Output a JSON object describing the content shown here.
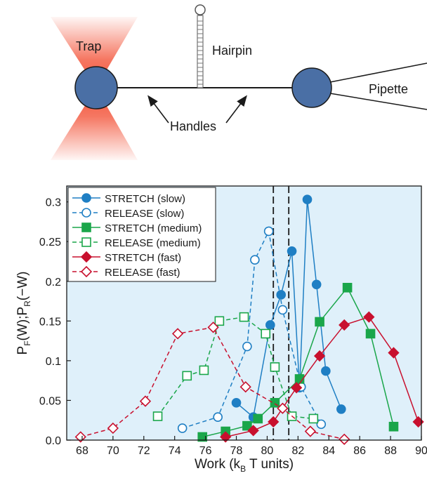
{
  "schematic": {
    "trap_label": "Trap",
    "hairpin_label": "Hairpin",
    "handles_label": "Handles",
    "pipette_label": "Pipette",
    "colors": {
      "bead": "#4a6fa5",
      "trap": "#f24a2e",
      "line": "#1a1a1a"
    }
  },
  "chart_data": {
    "type": "line",
    "xlabel": "Work (k",
    "xlabel_sub": "B",
    "xlabel_tail": " T units)",
    "ylabel_main": "P",
    "ylabel_sub1": "F",
    "ylabel_mid": "(W);P",
    "ylabel_sub2": "R",
    "ylabel_tail": "(−W)",
    "xlim": [
      67,
      90
    ],
    "ylim": [
      0,
      0.32
    ],
    "xticks": [
      68,
      70,
      72,
      74,
      76,
      78,
      80,
      82,
      84,
      86,
      88,
      90
    ],
    "yticks": [
      0.0,
      0.05,
      0.1,
      0.15,
      0.2,
      0.25,
      0.3
    ],
    "ytick_labels": [
      "0.0",
      "0.05",
      "0.1",
      "0.15",
      "0.2",
      "0.25",
      "0.3"
    ],
    "vlines": [
      80.4,
      81.4
    ],
    "grid": false,
    "legend_position": "top-left",
    "background": "#dff0fa",
    "series": [
      {
        "name": "STRETCH (slow)",
        "color": "#1f7fc4",
        "marker": "circle",
        "filled": true,
        "dashed": false,
        "x": [
          78.0,
          79.1,
          80.2,
          80.9,
          81.6,
          82.1,
          82.6,
          83.2,
          83.8,
          84.8
        ],
        "y": [
          0.047,
          0.029,
          0.145,
          0.183,
          0.238,
          0.066,
          0.303,
          0.196,
          0.087,
          0.039
        ]
      },
      {
        "name": "RELEASE (slow)",
        "color": "#1f7fc4",
        "marker": "circle",
        "filled": false,
        "dashed": true,
        "x": [
          74.5,
          76.8,
          78.7,
          79.2,
          80.1,
          81.0,
          82.2,
          83.5
        ],
        "y": [
          0.015,
          0.029,
          0.118,
          0.227,
          0.263,
          0.164,
          0.067,
          0.02
        ]
      },
      {
        "name": "STRETCH (medium)",
        "color": "#1aa64a",
        "marker": "square",
        "filled": true,
        "dashed": false,
        "x": [
          75.8,
          77.3,
          78.7,
          79.4,
          80.5,
          82.1,
          83.4,
          85.2,
          86.7,
          88.2
        ],
        "y": [
          0.004,
          0.011,
          0.018,
          0.027,
          0.047,
          0.077,
          0.149,
          0.192,
          0.134,
          0.017
        ]
      },
      {
        "name": "RELEASE (medium)",
        "color": "#1aa64a",
        "marker": "square",
        "filled": false,
        "dashed": true,
        "x": [
          72.9,
          74.8,
          75.9,
          76.9,
          78.5,
          79.9,
          80.5,
          81.6,
          83.0
        ],
        "y": [
          0.03,
          0.081,
          0.088,
          0.15,
          0.155,
          0.134,
          0.092,
          0.03,
          0.027
        ]
      },
      {
        "name": "STRETCH (fast)",
        "color": "#c8102e",
        "marker": "diamond",
        "filled": true,
        "dashed": false,
        "x": [
          77.3,
          79.1,
          80.4,
          81.9,
          83.4,
          85.0,
          86.6,
          88.2,
          89.8
        ],
        "y": [
          0.004,
          0.012,
          0.023,
          0.066,
          0.106,
          0.145,
          0.155,
          0.11,
          0.023
        ]
      },
      {
        "name": "RELEASE (fast)",
        "color": "#c8102e",
        "marker": "diamond",
        "filled": false,
        "dashed": true,
        "x": [
          67.9,
          70.0,
          72.1,
          74.2,
          76.5,
          78.6,
          81.0,
          82.8,
          85.0
        ],
        "y": [
          0.004,
          0.015,
          0.049,
          0.134,
          0.142,
          0.067,
          0.04,
          0.011,
          0.001
        ]
      }
    ]
  }
}
